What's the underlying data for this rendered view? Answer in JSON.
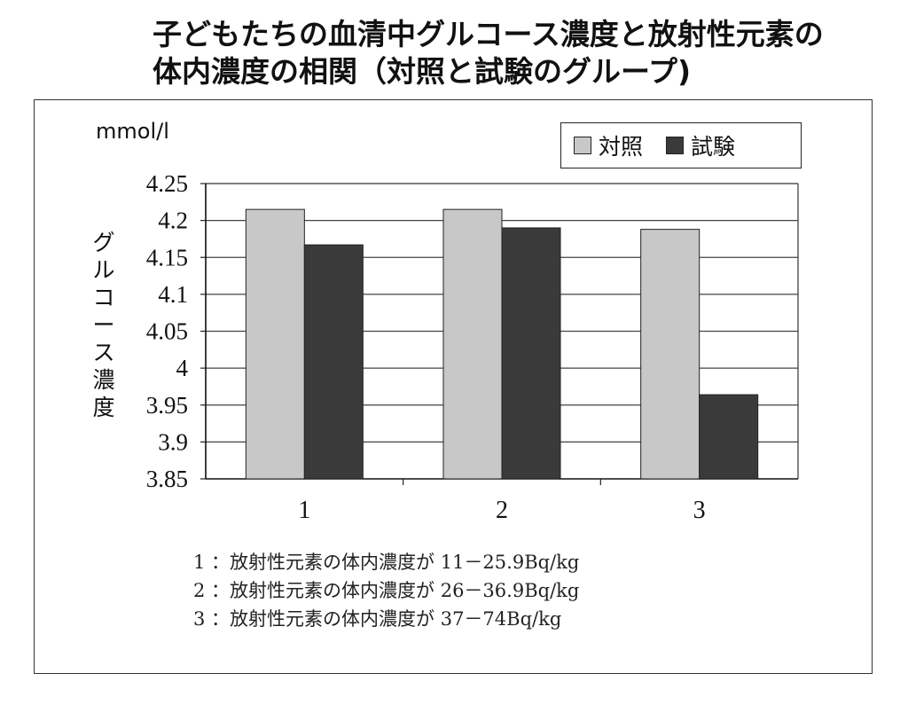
{
  "chart_data": {
    "type": "bar",
    "title": [
      "子どもたちの血清中グルコース濃度と放射性元素の",
      "体内濃度の相関（対照と試験のグループ)"
    ],
    "unit": "mmol/l",
    "ylabel": "グルコース濃度",
    "categories": [
      "1",
      "2",
      "3"
    ],
    "series": [
      {
        "name": "対照",
        "color": "#c8c8c8",
        "values": [
          4.215,
          4.215,
          4.188
        ]
      },
      {
        "name": "試験",
        "color": "#3a3a3a",
        "values": [
          4.167,
          4.19,
          3.964
        ]
      }
    ],
    "ylim": [
      3.85,
      4.25
    ],
    "yticks": [
      "4.25",
      "4.2",
      "4.15",
      "4.1",
      "4.05",
      "4",
      "3.95",
      "3.9",
      "3.85"
    ],
    "grid": true,
    "legend_position": "top-right",
    "notes": [
      "1 ：放射性元素の体内濃度が 11－25.9Bq/kg",
      "2 ：放射性元素の体内濃度が 26－36.9Bq/kg",
      "3 ：放射性元素の体内濃度が 37－74Bq/kg"
    ]
  }
}
